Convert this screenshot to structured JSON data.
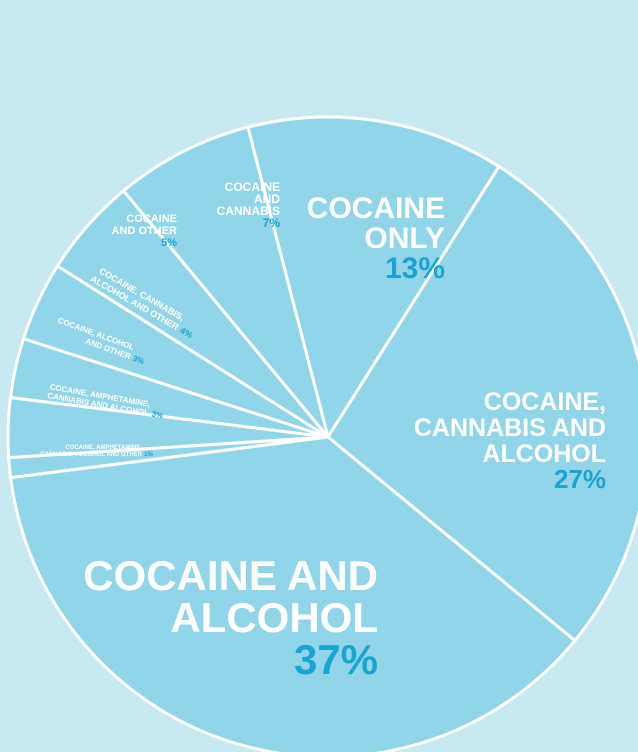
{
  "chart_data": {
    "type": "pie",
    "title": "",
    "slices": [
      {
        "label_lines": [
          "COCAINE",
          "ONLY"
        ],
        "percent_label": "13%",
        "value": 13
      },
      {
        "label_lines": [
          "COCAINE,",
          "CANNABIS AND",
          "ALCOHOL"
        ],
        "percent_label": "27%",
        "value": 27
      },
      {
        "label_lines": [
          "COCAINE AND",
          "ALCOHOL"
        ],
        "percent_label": "37%",
        "value": 37
      },
      {
        "label_lines": [
          "COCAINE, AMPHETAMINE,",
          "CANNABIS, ALCOHOL AND OTHER"
        ],
        "percent_label": "1%",
        "value": 1
      },
      {
        "label_lines": [
          "COCAINE, AMPHETAMINE,",
          "CANNABIS AND ALCOHOL"
        ],
        "percent_label": "3%",
        "value": 3
      },
      {
        "label_lines": [
          "COCAINE, ALCOHOL",
          "AND OTHER"
        ],
        "percent_label": "3%",
        "value": 3
      },
      {
        "label_lines": [
          "COCAINE, CANNABIS,",
          "ALCOHOL AND OTHER"
        ],
        "percent_label": "4%",
        "value": 4
      },
      {
        "label_lines": [
          "COCAINE",
          "AND OTHER"
        ],
        "percent_label": "5%",
        "value": 5
      },
      {
        "label_lines": [
          "COCAINE",
          "AND",
          "CANNABIS"
        ],
        "percent_label": "7%",
        "value": 7
      }
    ]
  },
  "colors": {
    "background": "#c8e9f1",
    "slice_fill": "#92d5e8",
    "slice_stroke": "#ffffff",
    "label_text": "#ffffff",
    "percent_text": "#1aa3d3"
  }
}
